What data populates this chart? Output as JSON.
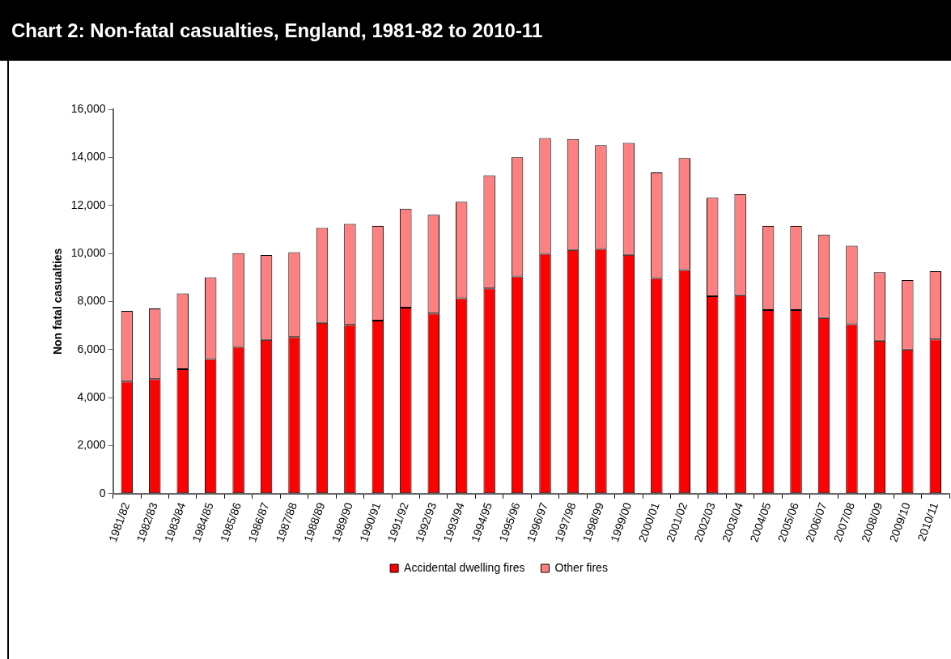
{
  "chart_data": {
    "type": "bar",
    "title": "Chart 2: Non-fatal casualties, England, 1981-82 to 2010-11",
    "ylabel": "Non fatal casualties",
    "stacked": true,
    "grid": false,
    "legend": "bottom",
    "categories": [
      "1981/82",
      "1982/83",
      "1983/84",
      "1984/85",
      "1985/86",
      "1986/87",
      "1987/88",
      "1988/89",
      "1989/90",
      "1990/91",
      "1991/92",
      "1992/93",
      "1993/94",
      "1994/95",
      "1995/96",
      "1996/97",
      "1997/98",
      "1998/99",
      "1999/00",
      "2000/01",
      "2001/02",
      "2002/03",
      "2003/04",
      "2004/05",
      "2005/06",
      "2006/07",
      "2007/08",
      "2008/09",
      "2009/10",
      "2010/11"
    ],
    "ylim": [
      0,
      16000
    ],
    "yticks": [
      {
        "value": 0,
        "label": "0"
      },
      {
        "value": 2000,
        "label": "2,000"
      },
      {
        "value": 4000,
        "label": "4,000"
      },
      {
        "value": 6000,
        "label": "6,000"
      },
      {
        "value": 8000,
        "label": "8,000"
      },
      {
        "value": 10000,
        "label": "10,000"
      },
      {
        "value": 12000,
        "label": "12,000"
      },
      {
        "value": 14000,
        "label": "14,000"
      },
      {
        "value": 16000,
        "label": "16,000"
      }
    ],
    "series": [
      {
        "name": "Accidental dwelling fires",
        "color": "#ff0000",
        "values": [
          4670,
          4770,
          5180,
          5600,
          6110,
          6400,
          6520,
          7110,
          7030,
          7200,
          7740,
          7500,
          8130,
          8540,
          9040,
          9980,
          10140,
          10190,
          9940,
          8970,
          9310,
          8210,
          8260,
          7640,
          7640,
          7310,
          7050,
          6370,
          6000,
          6420
        ]
      },
      {
        "name": "Other fires",
        "color": "#ff8080",
        "values": [
          2940,
          2940,
          3150,
          3410,
          3900,
          3530,
          3530,
          3950,
          4200,
          3950,
          4120,
          4110,
          4020,
          4710,
          4960,
          4820,
          4620,
          4320,
          4660,
          4400,
          4660,
          4110,
          4200,
          3510,
          3510,
          3470,
          3270,
          2850,
          2890,
          2840
        ]
      }
    ]
  }
}
